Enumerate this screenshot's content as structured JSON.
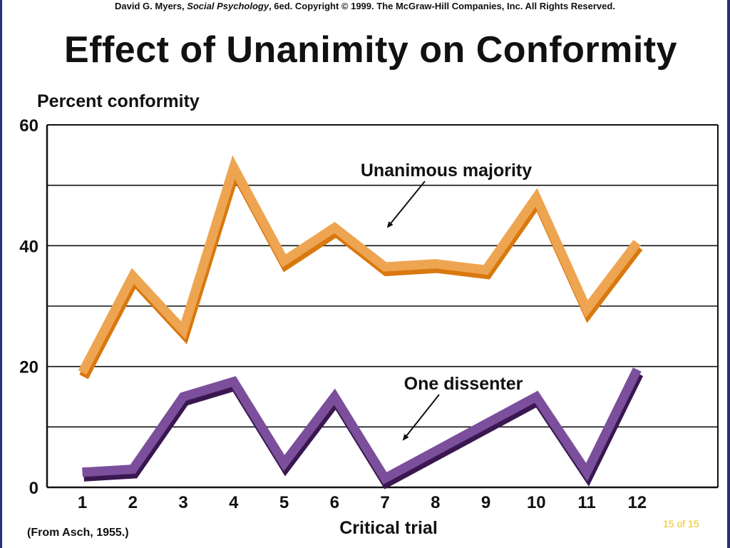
{
  "header": {
    "copyright_author": "David G. Myers, ",
    "copyright_book": "Social Psychology",
    "copyright_rest": ", 6ed. Copyright © 1999. The McGraw-Hill Companies, Inc. All Rights Reserved."
  },
  "footer": {
    "source": "(From Asch, 1955.)",
    "page": "15 of 15"
  },
  "colors": {
    "majority_light": "#eea552",
    "majority_dark": "#d9780e",
    "dissenter_light": "#7b4f9c",
    "dissenter_dark": "#3a1750"
  },
  "chart_data": {
    "type": "line",
    "title": "Effect of Unanimity on Conformity",
    "xlabel": "Critical trial",
    "ylabel": "Percent conformity",
    "categories": [
      "1",
      "2",
      "3",
      "4",
      "5",
      "6",
      "7",
      "8",
      "9",
      "10",
      "11",
      "12"
    ],
    "x": [
      1,
      2,
      3,
      4,
      5,
      6,
      7,
      8,
      9,
      10,
      11,
      12
    ],
    "ylim": [
      0,
      60
    ],
    "xlim": [
      0.3,
      13.6
    ],
    "yticks": [
      0,
      20,
      40,
      60
    ],
    "ytick_labels": [
      "0",
      "20",
      "40",
      "60"
    ],
    "gridlines": [
      10,
      20,
      30,
      40,
      50
    ],
    "grid": true,
    "series": [
      {
        "name": "Unanimous majority",
        "values": [
          19,
          35,
          26,
          53,
          37.5,
          43,
          36.5,
          37,
          36,
          48,
          29.5,
          40.5
        ]
      },
      {
        "name": "One dissenter",
        "values": [
          2.5,
          3,
          15,
          17.5,
          4,
          15,
          1.5,
          6,
          10.5,
          15,
          2.5,
          19.5
        ]
      }
    ],
    "annotations": [
      {
        "text": "Unanimous majority",
        "series": 0
      },
      {
        "text": "One dissenter",
        "series": 1
      }
    ]
  }
}
